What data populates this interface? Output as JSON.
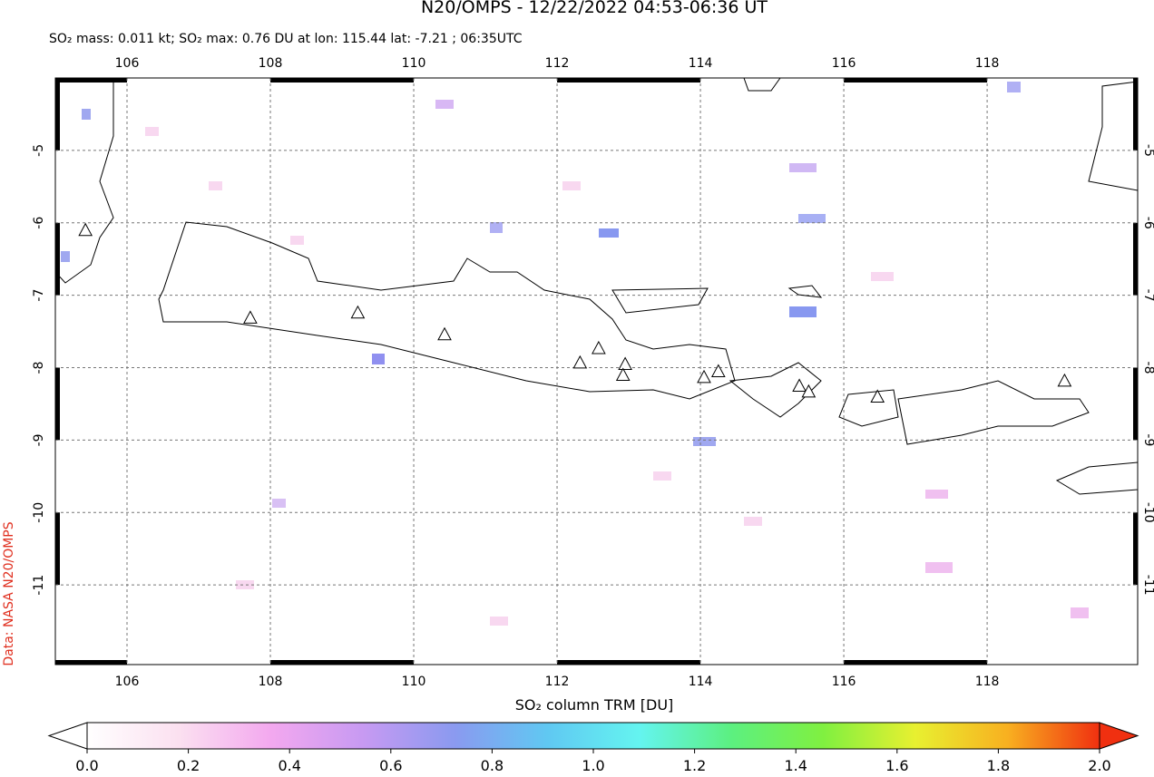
{
  "chart_data": {
    "type": "map",
    "title": "N20/OMPS - 12/22/2022 04:53-06:36 UT",
    "subtitle": "SO₂ mass: 0.011 kt; SO₂ max: 0.76 DU at lon: 115.44 lat: -7.21 ; 06:35UTC",
    "side_label": "Data: NASA N20/OMPS",
    "xlim": [
      105,
      120.1
    ],
    "ylim": [
      -12.1,
      -4.0
    ],
    "xticks": [
      106,
      108,
      110,
      112,
      114,
      116,
      118
    ],
    "yticks": [
      -5,
      -6,
      -7,
      -8,
      -9,
      -10,
      -11
    ],
    "volcanoes": {
      "lon": [
        105.42,
        107.72,
        109.22,
        110.43,
        112.32,
        112.58,
        112.95,
        112.92,
        114.05,
        114.25,
        115.38,
        115.51,
        116.47,
        119.08
      ],
      "lat": [
        -6.1,
        -7.31,
        -7.24,
        -7.54,
        -7.93,
        -7.73,
        -7.95,
        -8.1,
        -8.13,
        -8.05,
        -8.25,
        -8.33,
        -8.4,
        -8.18
      ]
    },
    "colorbar": {
      "label": "SO₂ column TRM [DU]",
      "lim": [
        0.0,
        2.0
      ],
      "colors": [
        "#ffffff",
        "#fbe0f0",
        "#f3a8ef",
        "#c79af2",
        "#8a9af0",
        "#60c8f2",
        "#64f4f0",
        "#5cf080",
        "#80f040",
        "#e8f030",
        "#f8b020",
        "#f03010"
      ],
      "ticks": [
        {
          "value": 0,
          "label": "0.0"
        },
        {
          "value": 0.2,
          "label": "0.2"
        },
        {
          "value": 0.4,
          "label": "0.4"
        },
        {
          "value": 0.6,
          "label": "0.6"
        },
        {
          "value": 0.8,
          "label": "0.8"
        },
        {
          "value": 1,
          "label": "1.0"
        },
        {
          "value": 1.2,
          "label": "1.2"
        },
        {
          "value": 1.4,
          "label": "1.4"
        },
        {
          "value": 1.6,
          "label": "1.6"
        },
        {
          "value": 1.8,
          "label": "1.8"
        },
        {
          "value": 2,
          "label": "2.0"
        }
      ]
    }
  }
}
